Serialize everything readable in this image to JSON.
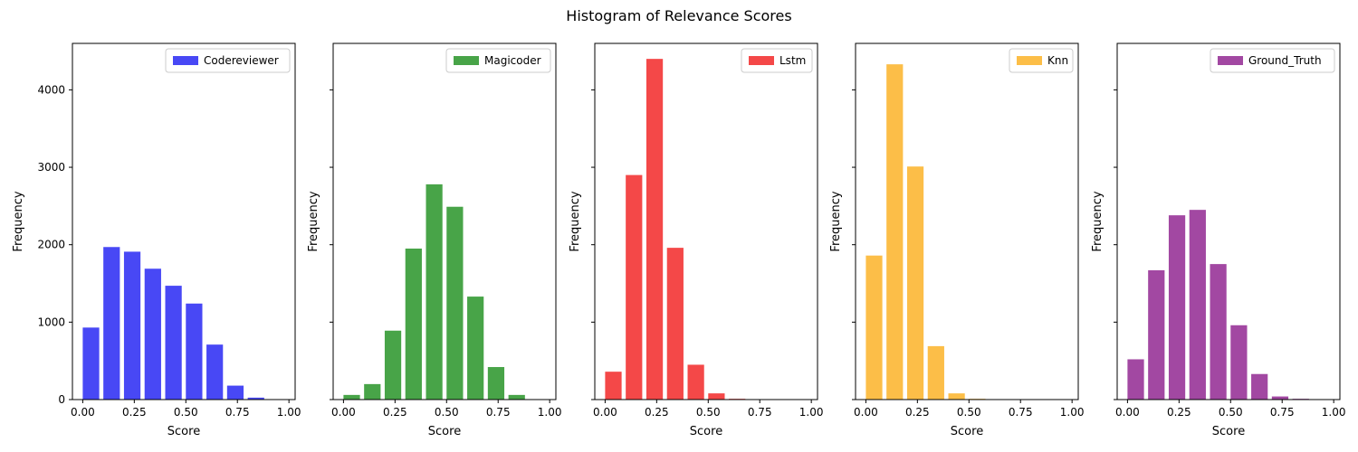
{
  "title": "Histogram of Relevance Scores",
  "chart_data": [
    {
      "type": "bar",
      "title": "",
      "xlabel": "Score",
      "ylabel": "Frequency",
      "series": [
        {
          "name": "Codereviewer",
          "color": "#4848f5",
          "x": [
            0.04,
            0.14,
            0.24,
            0.34,
            0.44,
            0.54,
            0.64,
            0.74,
            0.84,
            0.94
          ],
          "values": [
            930,
            1970,
            1910,
            1690,
            1470,
            1240,
            710,
            180,
            25,
            0
          ]
        }
      ],
      "xlim": [
        -0.05,
        1.03
      ],
      "ylim": [
        0,
        4600
      ],
      "xticks": [
        "0.00",
        "0.25",
        "0.50",
        "0.75",
        "1.00"
      ],
      "yticks": [
        "0",
        "1000",
        "2000",
        "3000",
        "4000"
      ],
      "legend": "top-right"
    },
    {
      "type": "bar",
      "title": "",
      "xlabel": "Score",
      "ylabel": "Frequency",
      "series": [
        {
          "name": "Magicoder",
          "color": "#48a448",
          "x": [
            0.04,
            0.14,
            0.24,
            0.34,
            0.44,
            0.54,
            0.64,
            0.74,
            0.84,
            0.94
          ],
          "values": [
            60,
            200,
            890,
            1950,
            2780,
            2490,
            1330,
            420,
            60,
            0
          ]
        }
      ],
      "xlim": [
        -0.05,
        1.03
      ],
      "ylim": [
        0,
        4600
      ],
      "xticks": [
        "0.00",
        "0.25",
        "0.50",
        "0.75",
        "1.00"
      ],
      "yticks": [],
      "legend": "top-right"
    },
    {
      "type": "bar",
      "title": "",
      "xlabel": "Score",
      "ylabel": "Frequency",
      "series": [
        {
          "name": "Lstm",
          "color": "#f44848",
          "x": [
            0.04,
            0.14,
            0.24,
            0.34,
            0.44,
            0.54,
            0.64,
            0.74,
            0.84,
            0.94
          ],
          "values": [
            360,
            2900,
            4400,
            1960,
            450,
            80,
            10,
            0,
            0,
            0
          ]
        }
      ],
      "xlim": [
        -0.05,
        1.03
      ],
      "ylim": [
        0,
        4600
      ],
      "xticks": [
        "0.00",
        "0.25",
        "0.50",
        "0.75",
        "1.00"
      ],
      "yticks": [],
      "legend": "top-right"
    },
    {
      "type": "bar",
      "title": "",
      "xlabel": "Score",
      "ylabel": "Frequency",
      "series": [
        {
          "name": "Knn",
          "color": "#fcbe48",
          "x": [
            0.04,
            0.14,
            0.24,
            0.34,
            0.44,
            0.54,
            0.64,
            0.74,
            0.84,
            0.94
          ],
          "values": [
            1860,
            4330,
            3010,
            690,
            80,
            10,
            0,
            0,
            0,
            0
          ]
        }
      ],
      "xlim": [
        -0.05,
        1.03
      ],
      "ylim": [
        0,
        4600
      ],
      "xticks": [
        "0.00",
        "0.25",
        "0.50",
        "0.75",
        "1.00"
      ],
      "yticks": [],
      "legend": "top-right"
    },
    {
      "type": "bar",
      "title": "",
      "xlabel": "Score",
      "ylabel": "Frequency",
      "series": [
        {
          "name": "Ground_Truth",
          "color": "#a248a2",
          "x": [
            0.04,
            0.14,
            0.24,
            0.34,
            0.44,
            0.54,
            0.64,
            0.74,
            0.84,
            0.94
          ],
          "values": [
            520,
            1670,
            2380,
            2450,
            1750,
            960,
            330,
            40,
            10,
            0
          ]
        }
      ],
      "xlim": [
        -0.05,
        1.03
      ],
      "ylim": [
        0,
        4600
      ],
      "xticks": [
        "0.00",
        "0.25",
        "0.50",
        "0.75",
        "1.00"
      ],
      "yticks": [],
      "legend": "top-right"
    }
  ]
}
